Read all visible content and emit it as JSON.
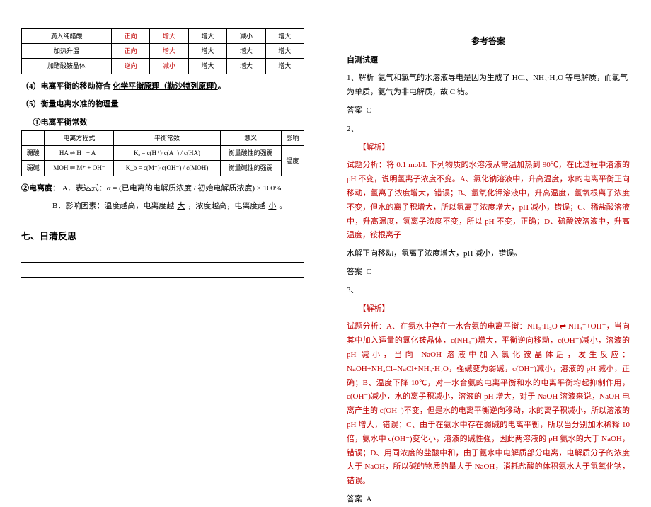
{
  "left": {
    "table1": {
      "columns_count": 6,
      "rows": [
        [
          "滴入纯醋酸",
          "正向",
          "增大",
          "增大",
          "减小",
          "增大"
        ],
        [
          "加热升温",
          "正向",
          "增大",
          "增大",
          "增大",
          "增大"
        ],
        [
          "加醋酸铵晶体",
          "逆向",
          "减小",
          "增大",
          "增大",
          "增大"
        ]
      ],
      "col_colors": [
        "#000",
        "#c00000",
        "#c00000",
        "#000",
        "#000",
        "#000"
      ]
    },
    "line4": "（4）电离平衡的移动符合",
    "line4_link": "化学平衡原理（勒沙特列原理）",
    "line5": "（5）衡量电离水准的物理量",
    "line5_sub1": "①电离平衡常数",
    "table2": {
      "headers": [
        "",
        "电离方程式",
        "平衡常数",
        "意义",
        "影响"
      ],
      "rows": [
        {
          "label": "弱酸",
          "eq": "HA ⇌ H⁺ + A⁻",
          "k": "Kₐ = c(H⁺)·c(A⁻) / c(HA)",
          "meaning": "衡量酸性的强弱",
          "effect": ""
        },
        {
          "label": "弱碱",
          "eq": "MOH ⇌ M⁺ + OH⁻",
          "k": "K_b = c(M⁺)·c(OH⁻) / c(MOH)",
          "meaning": "衡量碱性的强弱",
          "effect": ""
        }
      ],
      "effect_merged": "温度"
    },
    "line6_label": "②电离度：",
    "line6_a": "A．表达式：α = (已电离的电解质浓度 / 初始电解质浓度) × 100%",
    "line6_b": "B．影响因素：温度越高，电离度越",
    "line6_b_blank1": "大",
    "line6_b_mid": "，浓度越高，电离度越",
    "line6_b_blank2": "小",
    "line6_b_end": "。",
    "section7": "七、日清反思"
  },
  "right": {
    "title": "参考答案",
    "heading": "自测试题",
    "q1_label": "1、解析",
    "q1_text": "氨气和氯气的水溶液导电是因为生成了 HCl、NH₃·H₂O 等电解质，而氯气为单质，氨气为非电解质，故 C 错。",
    "q1_ans_label": "答案",
    "q1_ans": "C",
    "q2_num": "2、",
    "q2_jiexi": "【解析】",
    "q2_text1": "试题分析：将 0.1 mol/L 下列物质的水溶液从常温加热到 90℃，在此过程中溶液的 pH 不变，说明氢离子浓度不变。A、氯化钠溶液中，升高温度，水的电离平衡正向移动，氢离子浓度增大，错误；B、氢氧化钾溶液中，升高温度，氢氧根离子浓度不变，但水的离子积增大，所以氢离子浓度增大，pH 减小，错误；C、稀盐酸溶液中，升高温度，氢离子浓度不变，所以 pH 不变，正确；D、硫酸铵溶液中，升高温度，铵根离子",
    "q2_text2": "水解正向移动，氢离子浓度增大，pH 减小，错误。",
    "q2_ans_label": "答案",
    "q2_ans": "C",
    "q3_num": "3、",
    "q3_jiexi": "【解析】",
    "q3_text": "试题分析：A、在氨水中存在一水合氨的电离平衡：NH₃·H₂O ⇌ NH₄⁺+OH⁻，当向其中加入适量的氯化铵晶体，c(NH₄⁺)增大，平衡逆向移动，c(OH⁻)减小，溶液的 pH 减小，当向 NaOH 溶液中加入氯化铵晶体后，发生反应：NaOH+NH₄Cl=NaCl+NH₃·H₂O，强碱变为弱碱，c(OH⁻)减小，溶液的 pH 减小，正确；B、温度下降 10℃，对一水合氨的电离平衡和水的电离平衡均起抑制作用，c(OH⁻)减小，水的离子积减小，溶液的 pH 增大，对于 NaOH 溶液来说，NaOH 电离产生的 c(OH⁻)不变，但是水的电离平衡逆向移动，水的离子积减小，所以溶液的 pH 增大，错误；C、由于在氨水中存在弱碱的电离平衡，所以当分别加水稀释 10 倍，氨水中 c(OH⁻)变化小，溶液的碱性强，因此两溶液的 pH 氨水的大于 NaOH，错误；D、用同浓度的盐酸中和，由于氨水中电解质部分电离，电解质分子的浓度大于 NaOH，所以碱的物质的量大于 NaOH，消耗盐酸的体积氨水大于氢氧化钠，错误。",
    "q3_ans_label": "答案",
    "q3_ans": "A"
  }
}
